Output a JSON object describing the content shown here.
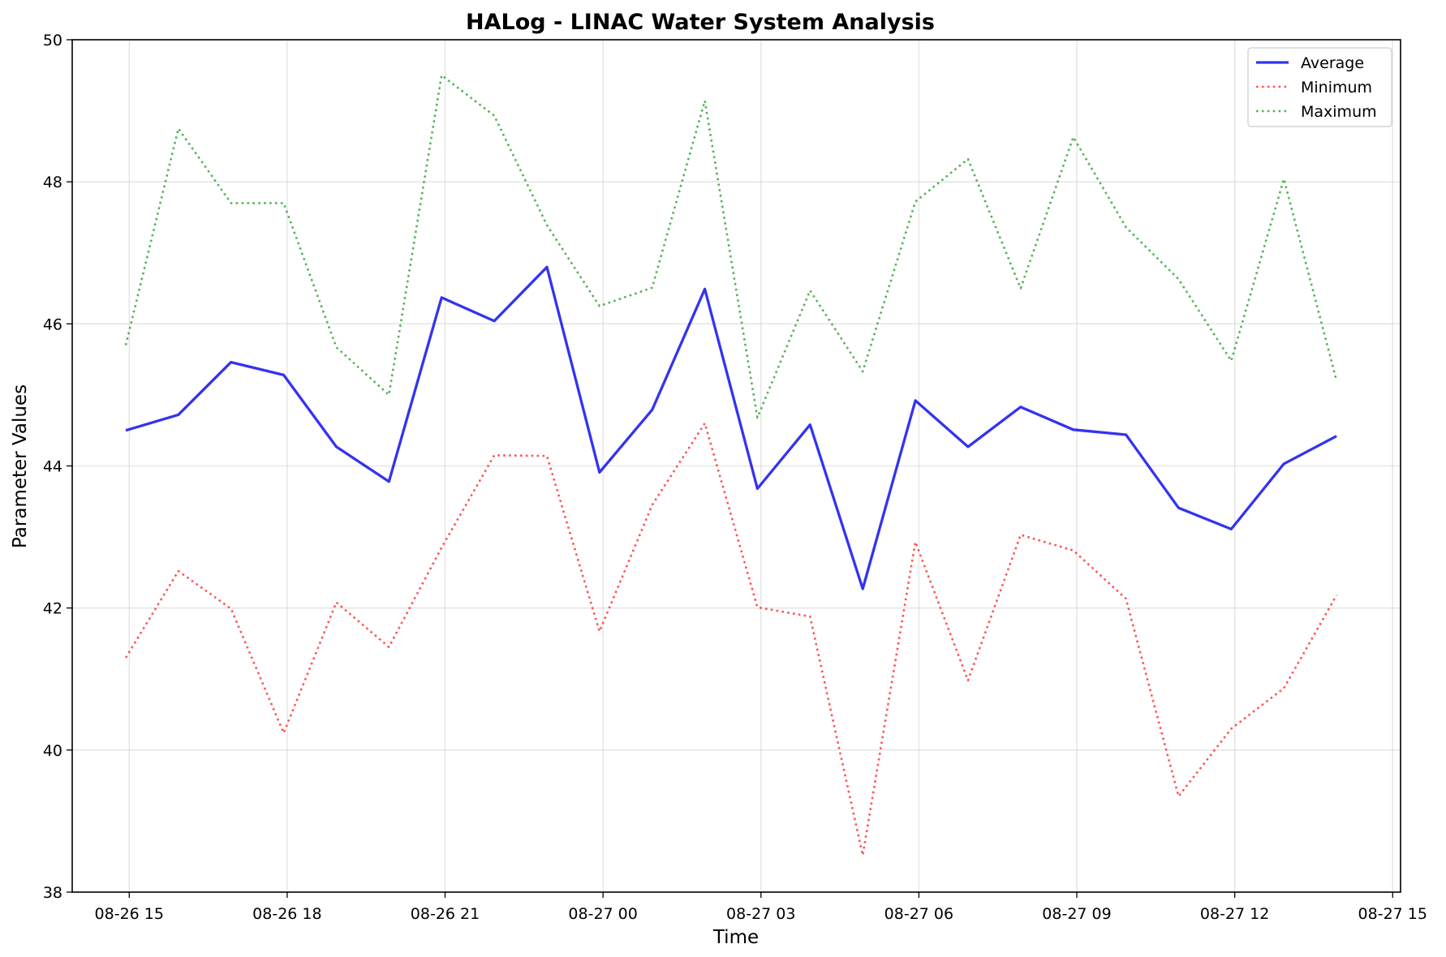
{
  "chart_data": {
    "type": "line",
    "title": "HALog - LINAC Water System Analysis",
    "xlabel": "Time",
    "ylabel": "Parameter Values",
    "x": [
      "08-26 15:00",
      "08-26 16:00",
      "08-26 17:00",
      "08-26 18:00",
      "08-26 19:00",
      "08-26 20:00",
      "08-26 21:00",
      "08-26 22:00",
      "08-26 23:00",
      "08-27 00:00",
      "08-27 01:00",
      "08-27 02:00",
      "08-27 03:00",
      "08-27 04:00",
      "08-27 05:00",
      "08-27 06:00",
      "08-27 07:00",
      "08-27 08:00",
      "08-27 09:00",
      "08-27 10:00",
      "08-27 11:00",
      "08-27 12:00",
      "08-27 13:00",
      "08-27 14:00"
    ],
    "x_ticks": [
      "08-26 15",
      "08-26 18",
      "08-26 21",
      "08-27 00",
      "08-27 03",
      "08-27 06",
      "08-27 09",
      "08-27 12",
      "08-27 15"
    ],
    "ylim": [
      38,
      50
    ],
    "y_ticks": [
      38,
      40,
      42,
      44,
      46,
      48,
      50
    ],
    "grid": true,
    "legend_position": "top-right",
    "series": [
      {
        "name": "Average",
        "color": "#0000ee",
        "style": "solid",
        "values": [
          44.5,
          44.72,
          45.46,
          45.28,
          44.27,
          43.78,
          46.37,
          46.04,
          46.8,
          43.91,
          44.79,
          46.49,
          43.68,
          44.58,
          42.27,
          44.92,
          44.27,
          44.83,
          44.51,
          44.44,
          43.41,
          43.11,
          44.03,
          44.42
        ]
      },
      {
        "name": "Minimum",
        "color": "#ff2a2a",
        "style": "dotted",
        "values": [
          41.3,
          42.52,
          41.99,
          40.24,
          42.08,
          41.45,
          42.85,
          44.15,
          44.14,
          41.67,
          43.45,
          44.6,
          42.01,
          41.88,
          38.52,
          42.93,
          40.98,
          43.03,
          42.81,
          42.13,
          39.35,
          40.3,
          40.87,
          42.18
        ]
      },
      {
        "name": "Maximum",
        "color": "#2ca02c",
        "style": "dotted",
        "values": [
          45.7,
          48.75,
          47.7,
          47.7,
          45.67,
          45.0,
          49.5,
          48.93,
          47.39,
          46.25,
          46.51,
          49.14,
          44.68,
          46.47,
          45.33,
          47.72,
          48.32,
          46.5,
          48.63,
          47.36,
          46.63,
          45.48,
          48.04,
          45.2
        ]
      }
    ]
  }
}
